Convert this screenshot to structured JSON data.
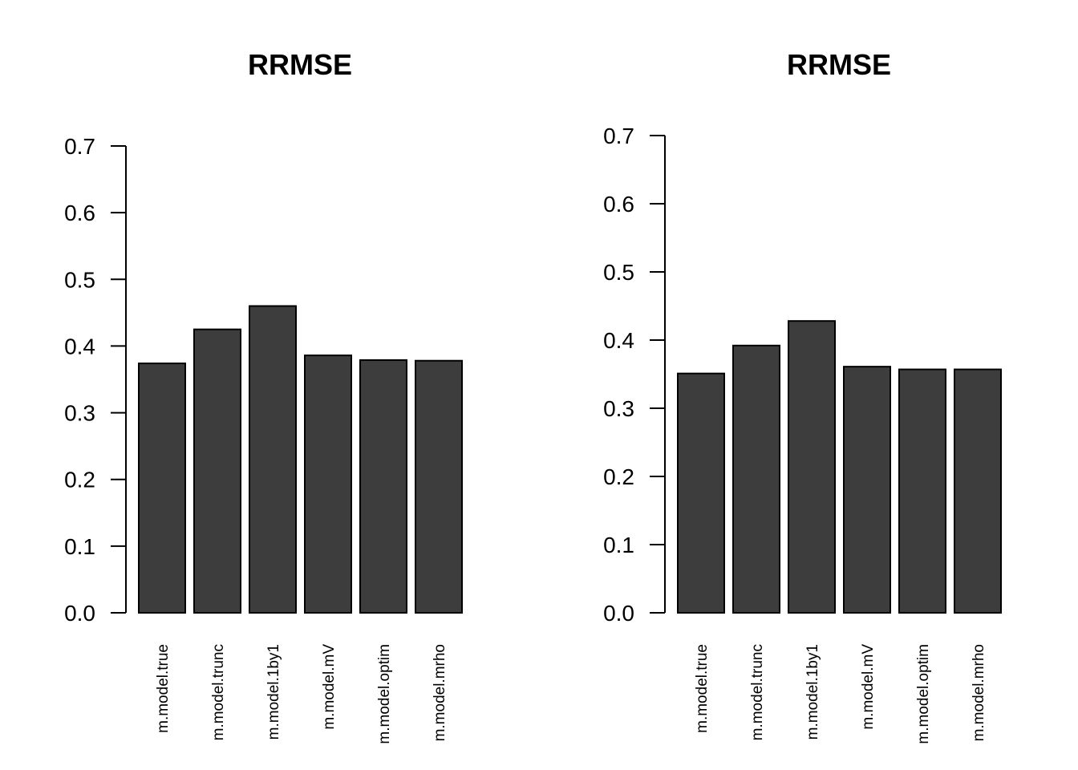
{
  "chart_data": [
    {
      "type": "bar",
      "title": "RRMSE",
      "categories": [
        "m.model.true",
        "m.model.trunc",
        "m.model.1by1",
        "m.model.mV",
        "m.model.optim",
        "m.model.mrho"
      ],
      "values": [
        0.374,
        0.425,
        0.46,
        0.386,
        0.379,
        0.378
      ],
      "ylim": [
        0,
        0.7
      ],
      "yticks": [
        "0.0",
        "0.1",
        "0.2",
        "0.3",
        "0.4",
        "0.5",
        "0.6",
        "0.7"
      ],
      "xlabel": "",
      "ylabel": "",
      "grid": false,
      "bar_color": "#3d3d3d"
    },
    {
      "type": "bar",
      "title": "RRMSE",
      "categories": [
        "m.model.true",
        "m.model.trunc",
        "m.model.1by1",
        "m.model.mV",
        "m.model.optim",
        "m.model.mrho"
      ],
      "values": [
        0.351,
        0.392,
        0.428,
        0.361,
        0.357,
        0.357
      ],
      "ylim": [
        0,
        0.7
      ],
      "yticks": [
        "0.0",
        "0.1",
        "0.2",
        "0.3",
        "0.4",
        "0.5",
        "0.6",
        "0.7"
      ],
      "xlabel": "",
      "ylabel": "",
      "grid": false,
      "bar_color": "#3d3d3d"
    }
  ]
}
